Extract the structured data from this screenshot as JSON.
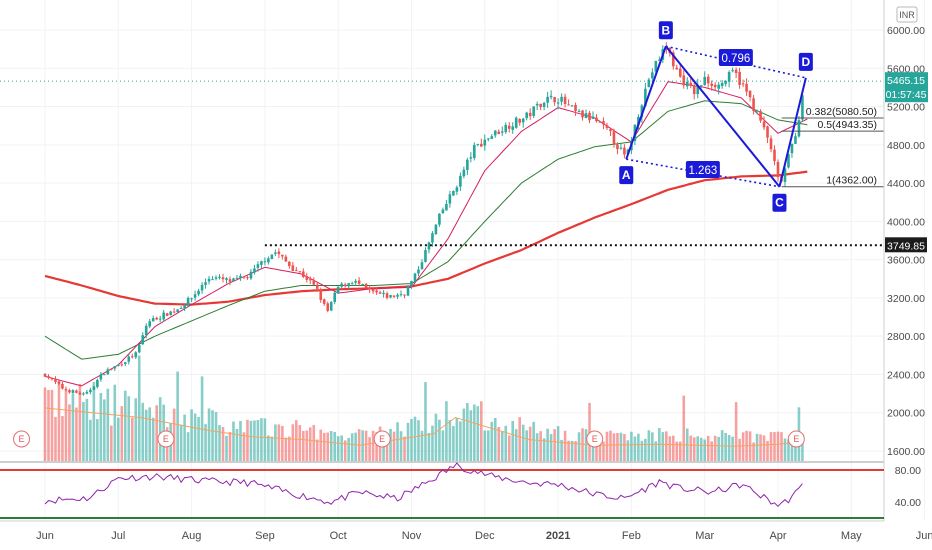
{
  "currency_badge": "INR",
  "price_tag": {
    "price": "5465.15",
    "countdown": "01:57:45",
    "color": "#26a69a"
  },
  "level_tag": {
    "label": "3749.85",
    "value": 3749.85
  },
  "fib_levels": [
    {
      "label": "0.382(5080.50)",
      "value": 5080.5
    },
    {
      "label": "0.5(4943.35)",
      "value": 4943.35
    },
    {
      "label": "1(4362.00)",
      "value": 4362.0
    }
  ],
  "harmonic": {
    "points": [
      {
        "label": "A",
        "month": 7.93,
        "price": 4650
      },
      {
        "label": "B",
        "month": 8.47,
        "price": 5830
      },
      {
        "label": "C",
        "month": 10.02,
        "price": 4362
      },
      {
        "label": "D",
        "month": 10.38,
        "price": 5500
      }
    ],
    "ratios": [
      "0.796",
      "1.263"
    ],
    "color": "#1a1ad8"
  },
  "earnings_markers": [
    "E",
    "E",
    "E",
    "E",
    "E"
  ],
  "chart_data": {
    "type": "candlestick",
    "x_ticks": [
      "Jun",
      "Jul",
      "Aug",
      "Sep",
      "Oct",
      "Nov",
      "Dec",
      "2021",
      "Feb",
      "Mar",
      "Apr",
      "May",
      "Jun"
    ],
    "price_axis": {
      "ticks": [
        "6000.00",
        "5600.00",
        "5200.00",
        "4800.00",
        "4400.00",
        "4000.00",
        "3600.00",
        "3200.00",
        "2800.00",
        "2400.00",
        "2000.00",
        "1600.00"
      ],
      "ylim": [
        1500,
        6250
      ]
    },
    "rsi_axis": {
      "ticks": [
        "80.00",
        "40.00"
      ],
      "ylim": [
        5,
        95
      ],
      "upper_band": 80,
      "lower_band": 20
    },
    "price_anchors": [
      [
        0.0,
        2400
      ],
      [
        0.25,
        2250
      ],
      [
        0.55,
        2180
      ],
      [
        0.8,
        2420
      ],
      [
        1.0,
        2500
      ],
      [
        1.25,
        2620
      ],
      [
        1.4,
        2950
      ],
      [
        1.55,
        3000
      ],
      [
        1.8,
        3080
      ],
      [
        2.0,
        3200
      ],
      [
        2.25,
        3420
      ],
      [
        2.55,
        3370
      ],
      [
        2.8,
        3440
      ],
      [
        3.0,
        3610
      ],
      [
        3.15,
        3680
      ],
      [
        3.35,
        3530
      ],
      [
        3.55,
        3420
      ],
      [
        3.7,
        3300
      ],
      [
        3.85,
        3050
      ],
      [
        4.0,
        3310
      ],
      [
        4.2,
        3380
      ],
      [
        4.45,
        3260
      ],
      [
        4.7,
        3210
      ],
      [
        4.9,
        3250
      ],
      [
        5.05,
        3430
      ],
      [
        5.2,
        3700
      ],
      [
        5.4,
        4080
      ],
      [
        5.65,
        4430
      ],
      [
        5.85,
        4760
      ],
      [
        6.05,
        4880
      ],
      [
        6.35,
        5020
      ],
      [
        6.55,
        5080
      ],
      [
        6.8,
        5270
      ],
      [
        7.0,
        5290
      ],
      [
        7.25,
        5130
      ],
      [
        7.5,
        5060
      ],
      [
        7.7,
        4920
      ],
      [
        7.93,
        4650
      ],
      [
        8.1,
        5150
      ],
      [
        8.25,
        5520
      ],
      [
        8.47,
        5830
      ],
      [
        8.65,
        5520
      ],
      [
        8.85,
        5350
      ],
      [
        9.0,
        5480
      ],
      [
        9.2,
        5420
      ],
      [
        9.4,
        5560
      ],
      [
        9.55,
        5380
      ],
      [
        9.75,
        5070
      ],
      [
        9.9,
        4780
      ],
      [
        10.02,
        4362
      ],
      [
        10.15,
        4680
      ],
      [
        10.28,
        5050
      ],
      [
        10.38,
        5500
      ]
    ],
    "volume_anchors": [
      [
        0.0,
        2150
      ],
      [
        1.3,
        2050
      ],
      [
        2.2,
        1920
      ],
      [
        2.8,
        1850
      ],
      [
        3.5,
        1820
      ],
      [
        4.3,
        1760
      ],
      [
        5.3,
        1880
      ],
      [
        5.6,
        2050
      ],
      [
        6.6,
        1820
      ],
      [
        7.5,
        1760
      ],
      [
        8.4,
        1770
      ],
      [
        9.4,
        1750
      ],
      [
        10.0,
        1770
      ],
      [
        10.38,
        1800
      ]
    ],
    "rsi_anchors": [
      [
        0.0,
        42
      ],
      [
        0.6,
        45
      ],
      [
        1.0,
        70
      ],
      [
        1.5,
        72
      ],
      [
        2.2,
        66
      ],
      [
        2.8,
        64
      ],
      [
        3.4,
        50
      ],
      [
        3.9,
        40
      ],
      [
        4.3,
        52
      ],
      [
        4.8,
        44
      ],
      [
        5.2,
        64
      ],
      [
        5.6,
        86
      ],
      [
        6.1,
        72
      ],
      [
        6.6,
        64
      ],
      [
        7.0,
        62
      ],
      [
        7.5,
        50
      ],
      [
        7.9,
        44
      ],
      [
        8.4,
        66
      ],
      [
        8.6,
        58
      ],
      [
        9.1,
        52
      ],
      [
        9.5,
        62
      ],
      [
        9.8,
        46
      ],
      [
        10.0,
        36
      ],
      [
        10.1,
        40
      ],
      [
        10.28,
        54
      ],
      [
        10.38,
        66
      ]
    ],
    "moving_averages": [
      {
        "color": "#e53935",
        "anchors": [
          [
            0.0,
            3430
          ],
          [
            0.5,
            3330
          ],
          [
            1.0,
            3220
          ],
          [
            1.5,
            3140
          ],
          [
            2.0,
            3130
          ],
          [
            2.5,
            3160
          ],
          [
            3.0,
            3230
          ],
          [
            3.5,
            3270
          ],
          [
            4.0,
            3290
          ],
          [
            4.5,
            3300
          ],
          [
            5.0,
            3320
          ],
          [
            5.5,
            3400
          ],
          [
            6.0,
            3560
          ],
          [
            6.5,
            3700
          ],
          [
            7.0,
            3880
          ],
          [
            7.5,
            4040
          ],
          [
            8.0,
            4180
          ],
          [
            8.5,
            4330
          ],
          [
            9.0,
            4430
          ],
          [
            9.5,
            4470
          ],
          [
            10.0,
            4480
          ],
          [
            10.4,
            4520
          ]
        ]
      },
      {
        "color": "#2e7d32",
        "anchors": [
          [
            0.0,
            2800
          ],
          [
            0.5,
            2560
          ],
          [
            1.0,
            2610
          ],
          [
            1.5,
            2800
          ],
          [
            2.0,
            2960
          ],
          [
            2.5,
            3120
          ],
          [
            3.0,
            3270
          ],
          [
            3.5,
            3330
          ],
          [
            4.0,
            3330
          ],
          [
            4.5,
            3330
          ],
          [
            5.0,
            3350
          ],
          [
            5.5,
            3580
          ],
          [
            6.0,
            4000
          ],
          [
            6.5,
            4400
          ],
          [
            7.0,
            4650
          ],
          [
            7.5,
            4780
          ],
          [
            8.0,
            4830
          ],
          [
            8.5,
            5150
          ],
          [
            9.0,
            5260
          ],
          [
            9.5,
            5230
          ],
          [
            10.0,
            5060
          ],
          [
            10.4,
            5010
          ]
        ]
      },
      {
        "color": "#d81b60",
        "anchors": [
          [
            0.0,
            2380
          ],
          [
            0.5,
            2280
          ],
          [
            1.0,
            2500
          ],
          [
            1.5,
            2900
          ],
          [
            2.0,
            3130
          ],
          [
            2.5,
            3350
          ],
          [
            3.0,
            3520
          ],
          [
            3.5,
            3450
          ],
          [
            4.0,
            3250
          ],
          [
            4.5,
            3300
          ],
          [
            5.0,
            3310
          ],
          [
            5.5,
            3820
          ],
          [
            6.0,
            4530
          ],
          [
            6.5,
            4940
          ],
          [
            7.0,
            5190
          ],
          [
            7.5,
            5080
          ],
          [
            8.0,
            4830
          ],
          [
            8.5,
            5460
          ],
          [
            9.0,
            5400
          ],
          [
            9.5,
            5290
          ],
          [
            10.0,
            4920
          ],
          [
            10.4,
            5070
          ]
        ]
      }
    ]
  }
}
